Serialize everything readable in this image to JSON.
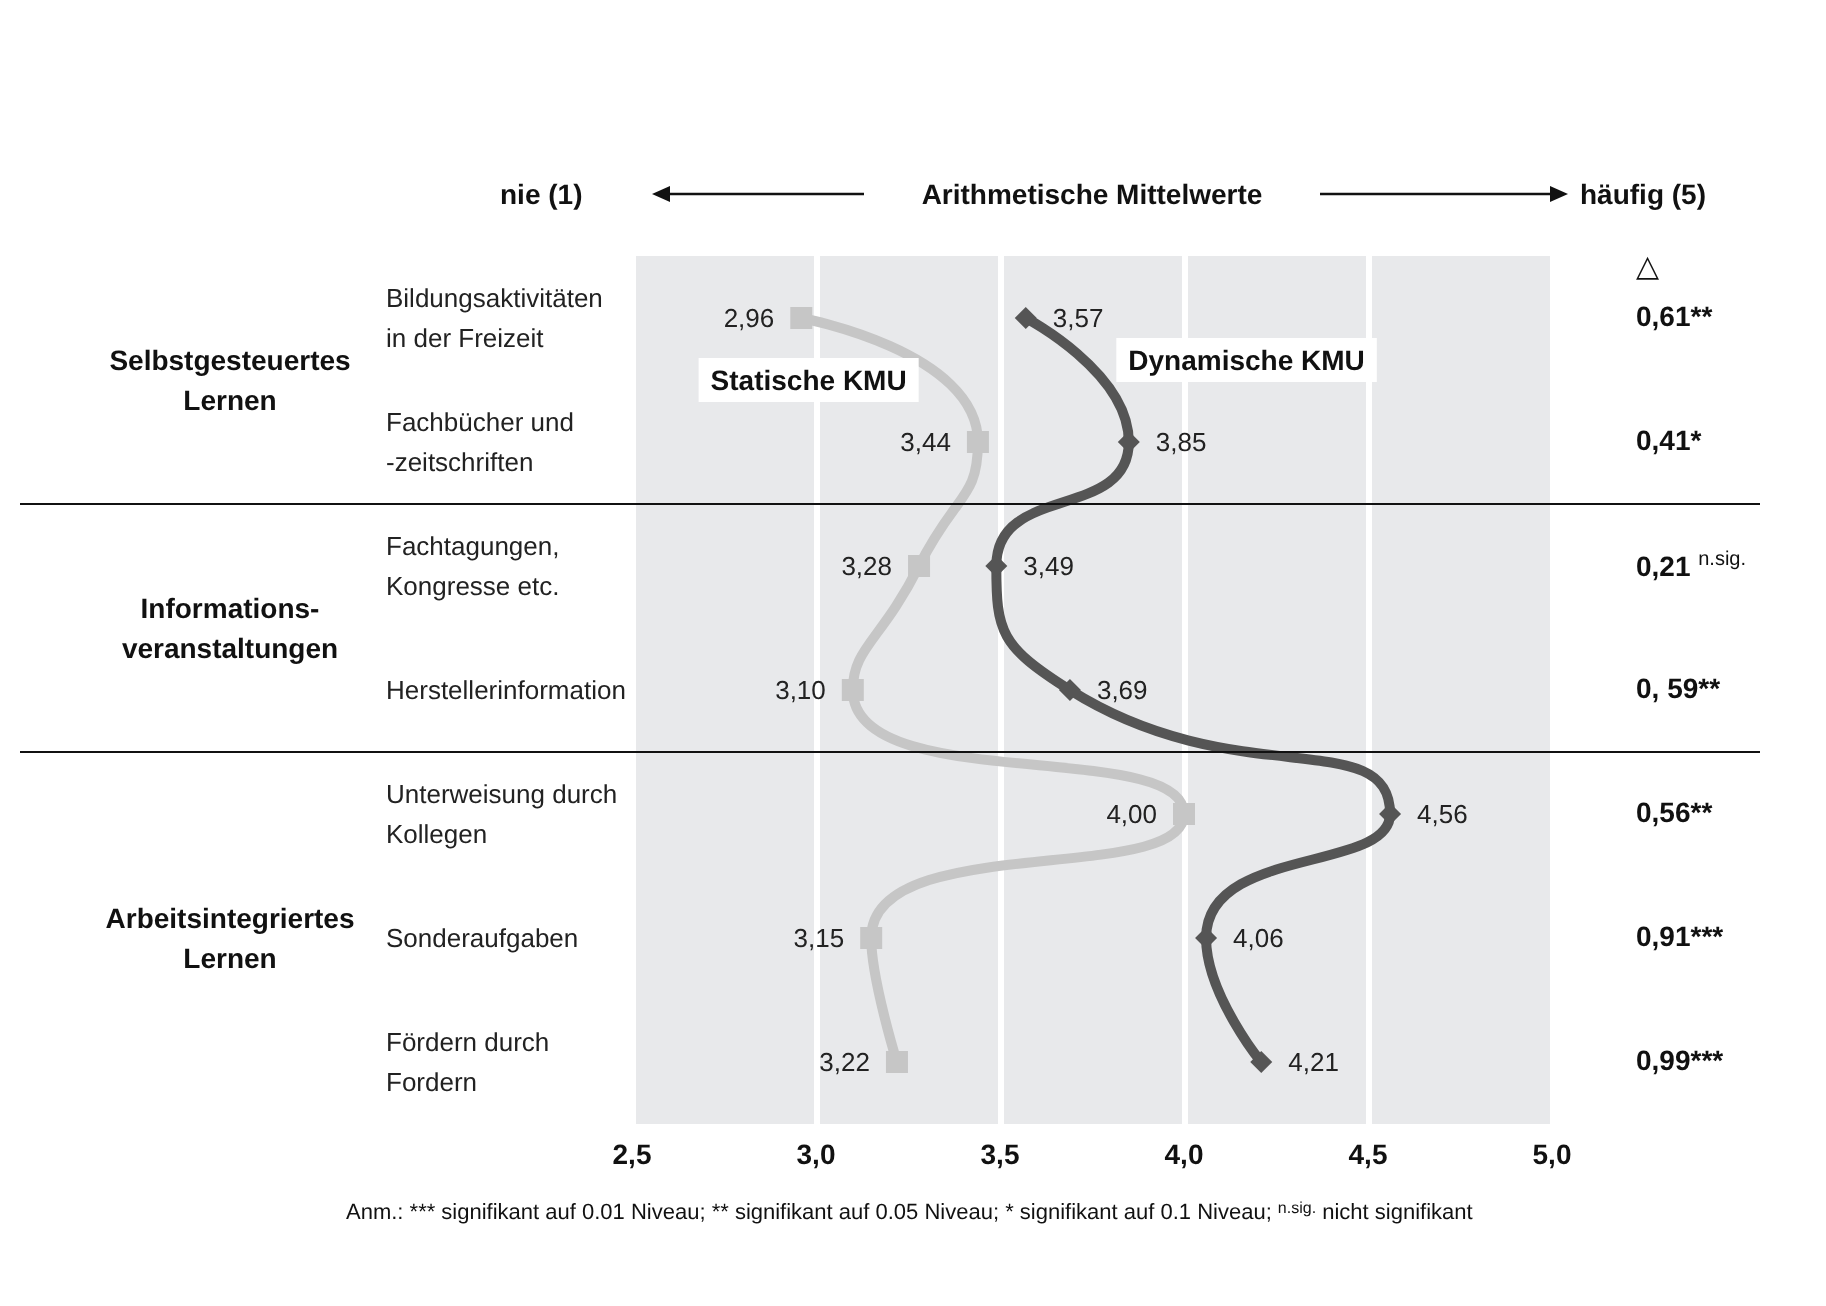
{
  "chart_data": {
    "type": "line",
    "orientation": "horizontal",
    "xlabel": "Arithmetische Mittelwerte",
    "categories": [
      "Bildungsaktivitäten\nin der Freizeit",
      "Fachbücher und\n-zeitschriften",
      "Fachtagungen,\nKongresse etc.",
      "Herstellerinformation",
      "Unterweisung durch\nKollegen",
      "Sonderaufgaben",
      "Fördern durch\nFordern"
    ],
    "series": [
      {
        "name": "Statische KMU",
        "color": "#c6c6c6",
        "marker": "square",
        "values": [
          2.96,
          3.44,
          3.28,
          3.1,
          4.0,
          3.15,
          3.22
        ],
        "value_labels": [
          "2,96",
          "3,44",
          "3,28",
          "3,10",
          "4,00",
          "3,15",
          "3,22"
        ]
      },
      {
        "name": "Dynamische KMU",
        "color": "#555555",
        "marker": "diamond",
        "values": [
          3.57,
          3.85,
          3.49,
          3.69,
          4.56,
          4.06,
          4.21
        ],
        "value_labels": [
          "3,57",
          "3,85",
          "3,49",
          "3,69",
          "4,56",
          "4,06",
          "4,21"
        ]
      }
    ],
    "xlim": [
      2.5,
      5.0
    ],
    "xticks": [
      {
        "value": 2.5,
        "label": "2,5"
      },
      {
        "value": 3.0,
        "label": "3,0"
      },
      {
        "value": 3.5,
        "label": "3,5"
      },
      {
        "value": 4.0,
        "label": "4,0"
      },
      {
        "value": 4.5,
        "label": "4,5"
      },
      {
        "value": 5.0,
        "label": "5,0"
      }
    ],
    "grid": "x",
    "legend": false,
    "line_style": "solid",
    "annotations": [
      "nie (1)",
      "häufig (5)",
      "△",
      "0,61**",
      "0,41*",
      "0,21 $^{n.sig.}$",
      "0, 59**",
      "0,56**",
      "0,91***",
      "0,99***",
      "Selbstgesteuertes\nLernen",
      "Informations-\nveranstaltungen",
      "Arbeitsintegriertes\nLernen",
      "Anm.: *** signifikant auf 0.01 Niveau; ** signifikant auf 0.05 Niveau; * signifikant auf 0.1 Niveau; $^{n.sig.}$ nicht signifikant"
    ]
  }
}
